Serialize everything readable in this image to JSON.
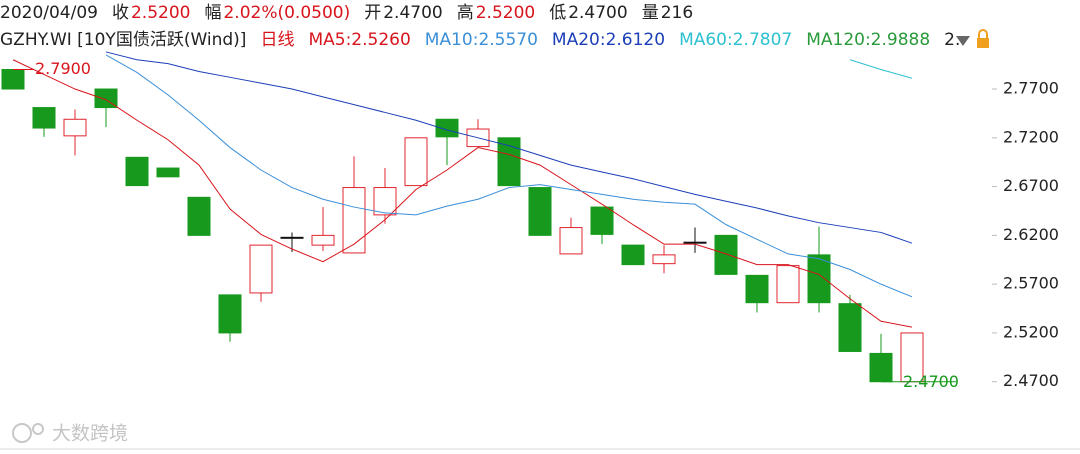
{
  "header": {
    "row1": [
      {
        "text": "2020/04/09",
        "color": "#222"
      },
      {
        "text": "收",
        "color": "#222"
      },
      {
        "text": "2.5200",
        "color": "#d8141c"
      },
      {
        "text": "幅",
        "color": "#222"
      },
      {
        "text": "2.02%(0.0500)",
        "color": "#d8141c"
      },
      {
        "text": "开",
        "color": "#222"
      },
      {
        "text": "2.4700",
        "color": "#222"
      },
      {
        "text": "高",
        "color": "#222"
      },
      {
        "text": "2.5200",
        "color": "#d8141c"
      },
      {
        "text": "低",
        "color": "#222"
      },
      {
        "text": "2.4700",
        "color": "#222"
      },
      {
        "text": "量",
        "color": "#222"
      },
      {
        "text": "216",
        "color": "#222"
      }
    ],
    "row2": [
      {
        "text": "GZHY.WI [10Y国债活跃(Wind)]",
        "color": "#222"
      },
      {
        "text": "日线",
        "color": "#d8141c"
      },
      {
        "text": "MA5:2.5260",
        "color": "#d8141c"
      },
      {
        "text": "MA10:2.5570",
        "color": "#3a8fd8"
      },
      {
        "text": "MA20:2.6120",
        "color": "#1c3fb8"
      },
      {
        "text": "MA60:2.7807",
        "color": "#2cc0d0"
      },
      {
        "text": "MA120:2.9888",
        "color": "#2a9a3a"
      },
      {
        "text": "2.",
        "color": "#222"
      }
    ]
  },
  "watermark": "大数跨境",
  "chart_data": {
    "type": "candlestick",
    "categories": [
      null,
      null,
      null,
      null,
      null,
      null,
      null,
      null,
      null,
      null,
      null,
      null,
      null,
      null,
      null,
      null,
      null,
      null,
      null,
      null,
      null,
      null,
      null,
      null,
      null,
      null,
      null,
      null,
      null,
      null
    ],
    "open": [
      2.79,
      2.751,
      2.722,
      2.77,
      2.7,
      2.689,
      2.659,
      2.559,
      2.561,
      2.618,
      2.61,
      2.602,
      2.641,
      2.671,
      2.739,
      2.711,
      2.72,
      2.669,
      2.601,
      2.649,
      2.61,
      2.591,
      2.613,
      2.62,
      2.579,
      2.551,
      2.6,
      2.55,
      2.499,
      2.47
    ],
    "high": [
      2.79,
      2.751,
      2.749,
      2.77,
      2.7,
      2.689,
      2.659,
      2.559,
      2.61,
      2.623,
      2.649,
      2.701,
      2.689,
      2.72,
      2.739,
      2.739,
      2.72,
      2.669,
      2.638,
      2.649,
      2.61,
      2.61,
      2.628,
      2.62,
      2.579,
      2.589,
      2.629,
      2.559,
      2.519,
      2.52
    ],
    "low": [
      2.77,
      2.721,
      2.702,
      2.731,
      2.671,
      2.68,
      2.62,
      2.511,
      2.552,
      2.603,
      2.604,
      2.602,
      2.632,
      2.671,
      2.692,
      2.711,
      2.671,
      2.62,
      2.601,
      2.611,
      2.59,
      2.581,
      2.602,
      2.58,
      2.541,
      2.551,
      2.541,
      2.501,
      2.47,
      2.47
    ],
    "close": [
      2.77,
      2.73,
      2.739,
      2.751,
      2.671,
      2.68,
      2.62,
      2.52,
      2.61,
      2.618,
      2.62,
      2.669,
      2.669,
      2.72,
      2.721,
      2.729,
      2.671,
      2.62,
      2.628,
      2.621,
      2.59,
      2.6,
      2.613,
      2.58,
      2.551,
      2.589,
      2.551,
      2.501,
      2.47,
      2.52
    ],
    "up_color": "#e0242c",
    "down_color": "#16991c",
    "flat_color": "#111",
    "lines": [
      {
        "color": "#d8141c",
        "values": [
          2.8,
          2.785,
          2.77,
          2.759,
          2.738,
          2.718,
          2.692,
          2.647,
          2.621,
          2.606,
          2.593,
          2.611,
          2.636,
          2.667,
          2.687,
          2.71,
          2.703,
          2.692,
          2.672,
          2.652,
          2.631,
          2.611,
          2.611,
          2.601,
          2.59,
          2.59,
          2.58,
          2.555,
          2.532,
          2.526
        ]
      },
      {
        "color": "#3a8fd8",
        "values": [
          null,
          null,
          null,
          2.805,
          2.787,
          2.764,
          2.738,
          2.71,
          2.687,
          2.669,
          2.657,
          2.649,
          2.643,
          2.641,
          2.65,
          2.657,
          2.669,
          2.672,
          2.667,
          2.662,
          2.657,
          2.654,
          2.652,
          2.631,
          2.616,
          2.601,
          2.596,
          2.585,
          2.57,
          2.557
        ]
      },
      {
        "color": "#1c3fb8",
        "values": [
          null,
          null,
          null,
          2.808,
          2.8,
          2.796,
          2.788,
          2.782,
          2.776,
          2.77,
          2.762,
          2.754,
          2.746,
          2.738,
          2.728,
          2.72,
          2.712,
          2.702,
          2.692,
          2.685,
          2.678,
          2.67,
          2.662,
          2.655,
          2.648,
          2.64,
          2.633,
          2.628,
          2.623,
          2.612
        ]
      },
      {
        "color": "#2cc0d0",
        "values": [
          null,
          null,
          null,
          null,
          null,
          null,
          null,
          null,
          null,
          null,
          null,
          null,
          null,
          null,
          null,
          null,
          null,
          null,
          null,
          null,
          null,
          null,
          null,
          null,
          null,
          null,
          null,
          2.8,
          2.79,
          2.781
        ]
      }
    ],
    "ylim": [
      2.4,
      2.81
    ],
    "yticks": [
      {
        "value": 2.77,
        "label": "2.7700"
      },
      {
        "value": 2.72,
        "label": "2.7200"
      },
      {
        "value": 2.67,
        "label": "2.6700"
      },
      {
        "value": 2.62,
        "label": "2.6200"
      },
      {
        "value": 2.57,
        "label": "2.5700"
      },
      {
        "value": 2.52,
        "label": "2.5200"
      },
      {
        "value": 2.47,
        "label": "2.4700"
      }
    ],
    "annotations": [
      {
        "index": 0,
        "field": "high",
        "value": 2.79,
        "label": "2.7900",
        "color": "#d8141c"
      },
      {
        "index": 28,
        "field": "low",
        "value": 2.47,
        "label": "2.4700",
        "color": "#16991c"
      }
    ]
  }
}
